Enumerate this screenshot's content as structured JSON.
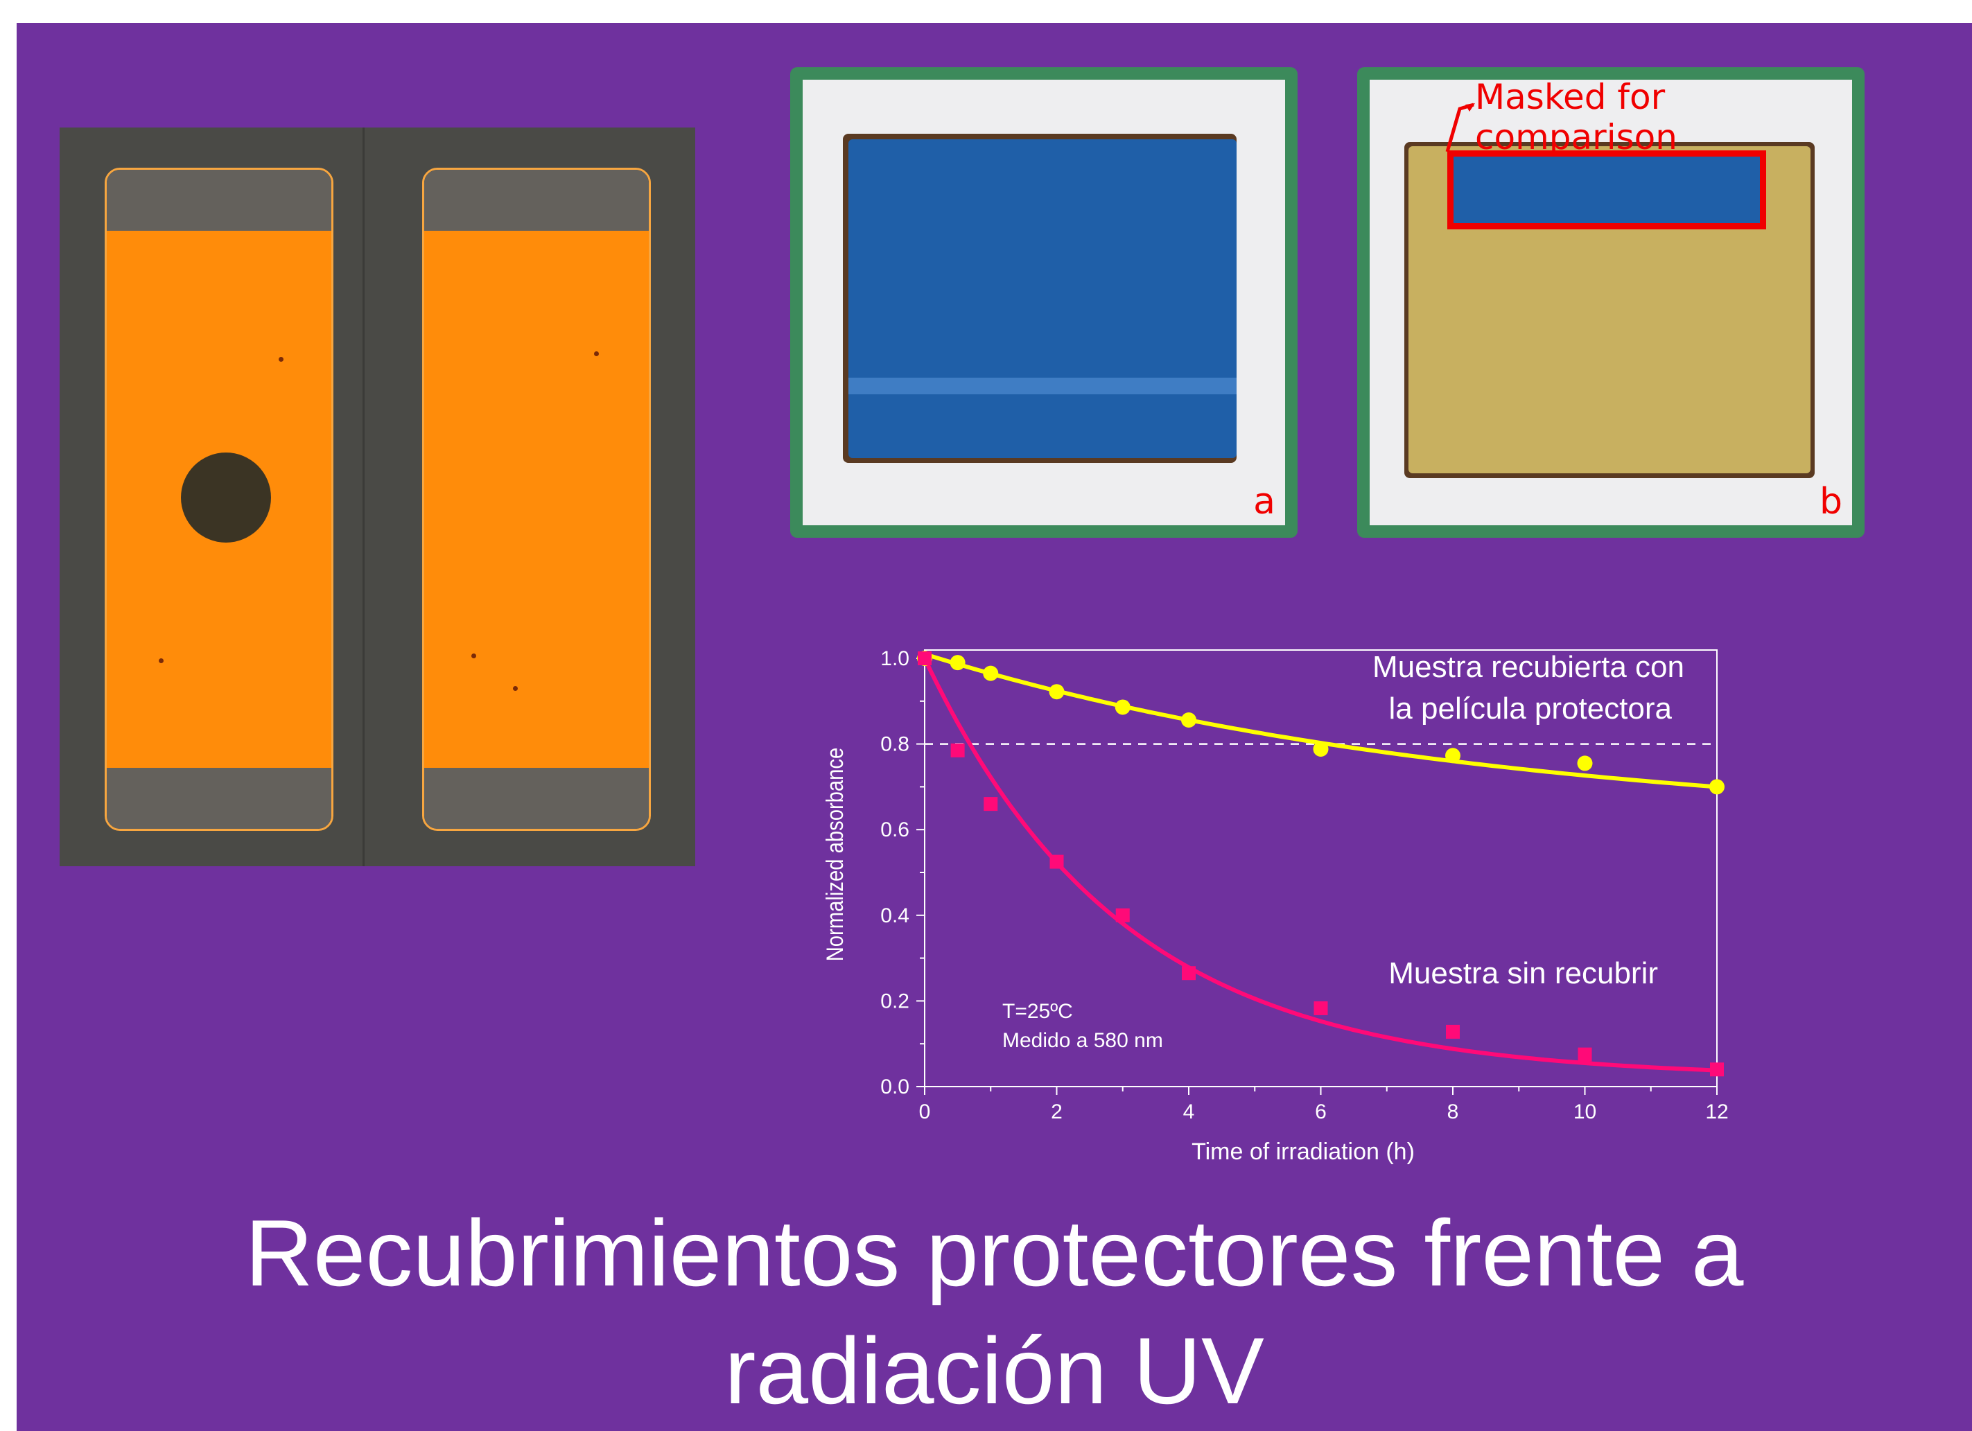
{
  "title": "Recubrimientos protectores frente a radiación UV",
  "title_line1": "Recubrimientos protectores frente a",
  "title_line2": "radiación UV",
  "photos": {
    "tile_a_label": "a",
    "tile_b_label": "b",
    "mask_annotation": "Masked for comparison"
  },
  "colors": {
    "slide_background": "#6f319e",
    "frame_green": "#3c8a5b",
    "coated_series": "#ffff00",
    "uncoated_series": "#ff0a78",
    "annotation_red": "#f00000"
  },
  "chart_data": {
    "type": "scatter",
    "xlabel": "Time of irradiation (h)",
    "ylabel": "Normalized absorbance",
    "xlim": [
      0,
      12
    ],
    "ylim": [
      0,
      1.0
    ],
    "xticks": [
      "0",
      "2",
      "4",
      "6",
      "8",
      "10",
      "12"
    ],
    "yticks": [
      "0.0",
      "0.2",
      "0.4",
      "0.6",
      "0.8",
      "1.0"
    ],
    "reference_line": 0.8,
    "grid": false,
    "annotations": {
      "conditions_line1": "T=25ºC",
      "conditions_line2": "Medido a  580 nm"
    },
    "series": [
      {
        "name": "Muestra recubierta con la película protectora",
        "label_line1": "Muestra recubierta con",
        "label_line2": "la película protectora",
        "marker": "circle",
        "x": [
          0,
          0.5,
          1,
          2,
          3,
          4,
          6,
          8,
          10,
          12
        ],
        "y": [
          1.0,
          0.99,
          0.965,
          0.922,
          0.886,
          0.856,
          0.788,
          0.773,
          0.755,
          0.7
        ]
      },
      {
        "name": "Muestra sin recubrir",
        "label_line1": "Muestra sin recubrir",
        "marker": "square",
        "x": [
          0,
          0.5,
          1,
          2,
          3,
          4,
          6,
          8,
          10,
          12
        ],
        "y": [
          1.0,
          0.785,
          0.66,
          0.525,
          0.4,
          0.265,
          0.183,
          0.128,
          0.075,
          0.04
        ]
      }
    ]
  }
}
